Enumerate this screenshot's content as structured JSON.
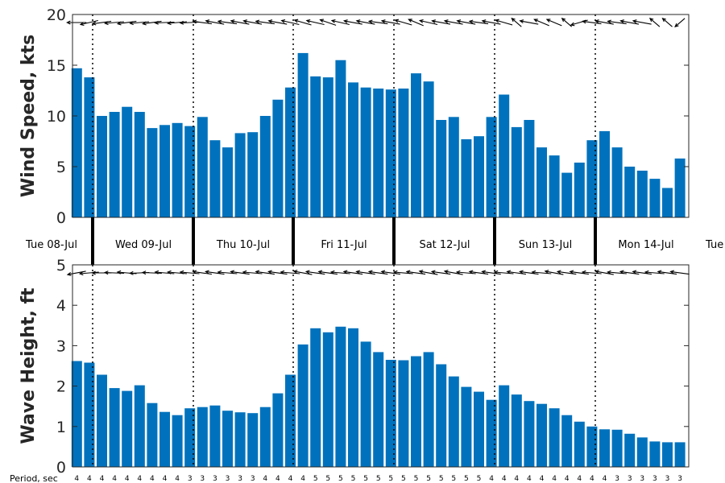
{
  "chart_data": [
    {
      "type": "bar",
      "ylabel": "Wind Speed, kts",
      "ylim": [
        0,
        20
      ],
      "yticks": [
        0,
        5,
        10,
        15,
        20
      ],
      "color": "#0072bd",
      "values": [
        14.7,
        13.8,
        10.0,
        10.4,
        10.9,
        10.4,
        8.8,
        9.1,
        9.3,
        9.0,
        9.9,
        7.6,
        6.9,
        8.3,
        8.4,
        10.0,
        11.6,
        12.8,
        16.2,
        13.9,
        13.8,
        15.5,
        13.3,
        12.8,
        12.7,
        12.6,
        12.7,
        14.2,
        13.4,
        9.6,
        9.9,
        7.7,
        8.0,
        9.9,
        12.1,
        8.9,
        9.6,
        6.9,
        6.1,
        4.4,
        5.4,
        7.6,
        8.5,
        6.9,
        5.0,
        4.6,
        3.8,
        2.9,
        5.8
      ],
      "direction_deg": [
        270,
        245,
        255,
        260,
        255,
        260,
        255,
        265,
        260,
        265,
        285,
        290,
        285,
        290,
        290,
        285,
        290,
        295,
        300,
        295,
        305,
        295,
        290,
        290,
        285,
        290,
        300,
        310,
        295,
        290,
        290,
        290,
        285,
        290,
        300,
        330,
        290,
        310,
        310,
        330,
        240,
        285,
        290,
        285,
        290,
        290,
        330,
        330,
        210
      ]
    },
    {
      "type": "bar",
      "ylabel": "Wave Height, ft",
      "ylim": [
        0,
        5
      ],
      "yticks": [
        0,
        1,
        2,
        3,
        4,
        5
      ],
      "color": "#0072bd",
      "values": [
        2.62,
        2.58,
        2.28,
        1.95,
        1.88,
        2.02,
        1.58,
        1.36,
        1.28,
        1.45,
        1.48,
        1.52,
        1.39,
        1.35,
        1.33,
        1.48,
        1.82,
        2.28,
        3.03,
        3.43,
        3.33,
        3.47,
        3.43,
        3.1,
        2.84,
        2.65,
        2.64,
        2.74,
        2.84,
        2.54,
        2.24,
        1.98,
        1.86,
        1.66,
        2.02,
        1.79,
        1.63,
        1.56,
        1.45,
        1.28,
        1.12,
        1.0,
        0.93,
        0.92,
        0.82,
        0.73,
        0.63,
        0.61,
        0.61
      ],
      "direction_deg": [
        250,
        260,
        270,
        275,
        280,
        265,
        275,
        280,
        280,
        280,
        285,
        285,
        280,
        285,
        280,
        285,
        285,
        280,
        290,
        285,
        285,
        280,
        285,
        285,
        285,
        285,
        280,
        285,
        290,
        285,
        290,
        280,
        285,
        285,
        280,
        285,
        285,
        280,
        290,
        285,
        285,
        280,
        290,
        280,
        285,
        285,
        280,
        285,
        285
      ]
    }
  ],
  "days": [
    "Tue 08-Jul",
    "Wed 09-Jul",
    "Thu 10-Jul",
    "Fri 11-Jul",
    "Sat 12-Jul",
    "Sun 13-Jul",
    "Mon 14-Jul",
    "Tue"
  ],
  "period_label": "Period, sec",
  "periods": [
    4,
    4,
    4,
    4,
    4,
    4,
    4,
    4,
    4,
    3,
    3,
    3,
    3,
    3,
    3,
    4,
    4,
    4,
    4,
    5,
    5,
    5,
    5,
    5,
    5,
    5,
    5,
    5,
    5,
    5,
    5,
    5,
    5,
    4,
    4,
    4,
    4,
    4,
    4,
    4,
    4,
    4,
    4,
    3,
    3,
    3,
    3,
    3,
    3
  ]
}
